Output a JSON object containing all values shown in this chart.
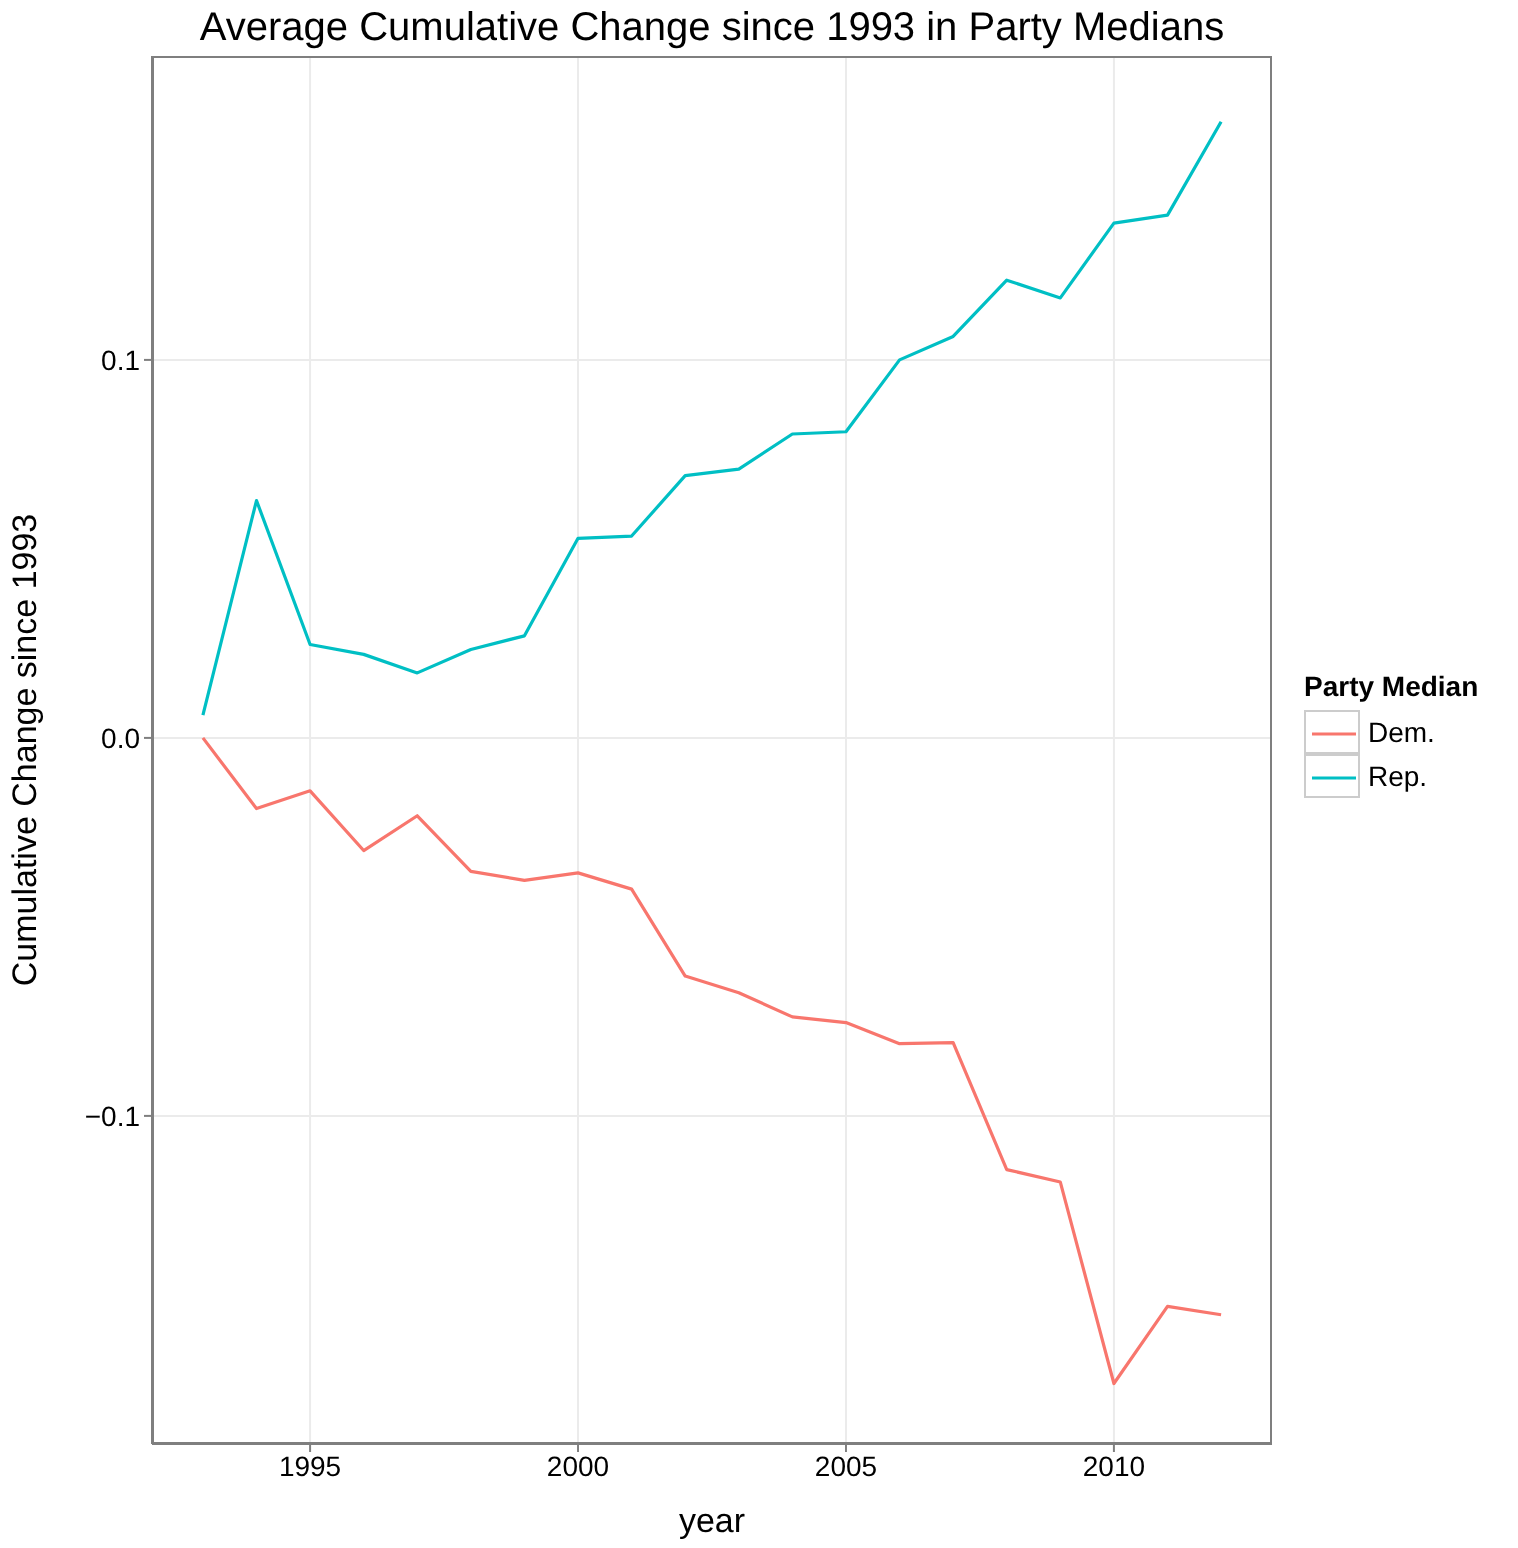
{
  "chart_data": {
    "type": "line",
    "title": "Average Cumulative Change since 1993 in Party Medians",
    "xlabel": "year",
    "ylabel": "Cumulative Change since 1993",
    "legend_title": "Party Median",
    "x": [
      1993,
      1994,
      1995,
      1996,
      1997,
      1998,
      1999,
      2000,
      2001,
      2002,
      2003,
      2004,
      2005,
      2006,
      2007,
      2008,
      2009,
      2010,
      2011,
      2012
    ],
    "series": [
      {
        "name": "Dem.",
        "color": "#f8766d",
        "values": [
          0,
          -0.0187,
          -0.014,
          -0.0298,
          -0.0206,
          -0.0353,
          -0.0377,
          -0.0357,
          -0.04,
          -0.063,
          -0.0674,
          -0.0738,
          -0.0753,
          -0.0809,
          -0.0806,
          -0.1142,
          -0.1175,
          -0.1708,
          -0.1504,
          -0.1526
        ]
      },
      {
        "name": "Rep.",
        "color": "#00bfc4",
        "values": [
          0.006,
          0.0628,
          0.0247,
          0.0221,
          0.0172,
          0.0234,
          0.027,
          0.0528,
          0.0534,
          0.0694,
          0.0711,
          0.0804,
          0.081,
          0.1,
          0.1062,
          0.1211,
          0.1164,
          0.1362,
          0.1383,
          0.163
        ]
      }
    ],
    "xlim": [
      1992.05,
      2012.95
    ],
    "xticks": [
      1995,
      2000,
      2005,
      2010
    ],
    "ylim": [
      -0.1868,
      0.1804
    ],
    "yticks": [
      {
        "value": -0.1,
        "label": "−0.1"
      },
      {
        "value": 0,
        "label": "0.0"
      },
      {
        "value": 0.1,
        "label": "0.1"
      }
    ],
    "grid": true,
    "legend": "right",
    "marker": "none",
    "line_style": "solid"
  }
}
